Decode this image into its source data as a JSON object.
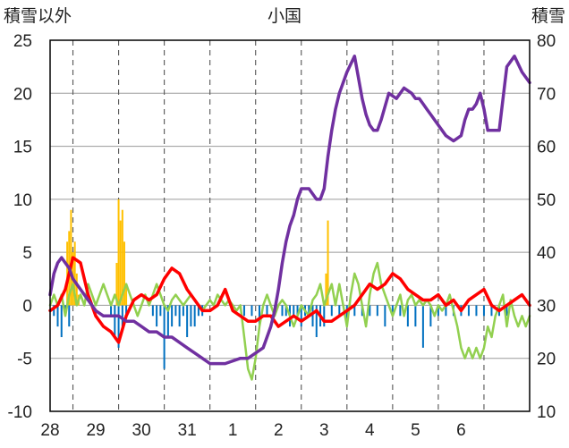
{
  "chart_data": {
    "type": "line",
    "title": "小国",
    "ylabel_left": "積雪以外",
    "ylabel_right": "積雪",
    "ylim_left": [
      -10,
      25
    ],
    "ylim_right": [
      10,
      80
    ],
    "yticks_left": [
      "25",
      "20",
      "15",
      "10",
      "5",
      "0",
      "-5",
      "-10"
    ],
    "yticks_right": [
      "80",
      "70",
      "60",
      "50",
      "40",
      "30",
      "20",
      "10"
    ],
    "x_range_hours": [
      -12,
      240
    ],
    "xtick_labels": [
      "28",
      "29",
      "30",
      "31",
      "1",
      "2",
      "3",
      "4",
      "5",
      "6"
    ],
    "grid": true,
    "legend": "none",
    "colors": {
      "temperature": "#ff0000",
      "snow_depth": "#7030a0",
      "snowfall": "#ffc000",
      "precipitation": "#0070c0",
      "wind": "#92d050"
    },
    "bars_snowfall": {
      "axis": "left",
      "x": [
        -3,
        -2,
        -1,
        0,
        1,
        2,
        3,
        23,
        24,
        25,
        26,
        27,
        28,
        133,
        134
      ],
      "values": [
        6,
        7,
        9,
        5,
        6,
        3,
        1,
        4,
        10,
        8,
        9,
        6,
        2,
        3,
        8
      ]
    },
    "bars_precipitation": {
      "axis": "left",
      "x": [
        -10,
        -8,
        -6,
        -4,
        -2,
        20,
        22,
        24,
        26,
        28,
        42,
        44,
        46,
        48,
        50,
        52,
        54,
        56,
        58,
        60,
        62,
        64,
        66,
        68,
        90,
        94,
        98,
        102,
        106,
        110,
        112,
        114,
        116,
        118,
        120,
        122,
        124,
        126,
        128,
        130,
        132,
        136,
        140,
        144,
        148,
        152,
        156,
        160,
        164,
        168,
        172,
        176,
        180,
        184,
        188,
        192,
        196,
        200,
        204,
        208,
        212,
        216,
        220,
        224,
        228
      ],
      "values": [
        -1,
        -2,
        -3,
        -1,
        -2,
        -1,
        -3,
        -4,
        -2,
        -1,
        -1,
        -2,
        -1,
        -6,
        -3,
        -2,
        -1,
        -2,
        -1,
        -3,
        -2,
        -2,
        -1,
        -1,
        -1,
        -1,
        -2,
        -1,
        -1,
        -1,
        -1,
        -2,
        -1,
        -1,
        -2,
        -1,
        -1,
        -2,
        -3,
        -2,
        -2,
        -1,
        -1,
        -2,
        -1,
        -1,
        -1,
        -1,
        -2,
        -1,
        -1,
        -2,
        -2,
        -4,
        -2,
        -1,
        -1,
        -1,
        -1,
        -1,
        -1,
        -1,
        -1,
        -1,
        -1
      ]
    },
    "series": [
      {
        "key": "snow_depth",
        "axis": "right",
        "x": [
          -12,
          -10,
          -8,
          -6,
          -4,
          -2,
          0,
          4,
          8,
          12,
          16,
          20,
          24,
          28,
          32,
          36,
          40,
          44,
          48,
          52,
          56,
          60,
          64,
          68,
          72,
          80,
          88,
          92,
          96,
          100,
          104,
          106,
          108,
          110,
          112,
          114,
          116,
          118,
          120,
          124,
          126,
          128,
          130,
          132,
          134,
          136,
          138,
          140,
          144,
          148,
          152,
          154,
          156,
          158,
          160,
          162,
          166,
          170,
          174,
          178,
          180,
          182,
          184,
          186,
          188,
          192,
          196,
          200,
          204,
          206,
          208,
          210,
          212,
          214,
          216,
          218,
          220,
          224,
          228,
          232,
          236,
          240
        ],
        "values": [
          32,
          36,
          38,
          39,
          38,
          37,
          35,
          33,
          31,
          29,
          28,
          28,
          28,
          27,
          27,
          26,
          25,
          25,
          24,
          24,
          23,
          22,
          21,
          20,
          19,
          19,
          20,
          20,
          21,
          22,
          26,
          29,
          33,
          38,
          42,
          45,
          47,
          50,
          52,
          52,
          51,
          50,
          50,
          52,
          58,
          63,
          67,
          70,
          74,
          77,
          69,
          66,
          64,
          63,
          63,
          65,
          70,
          69,
          71,
          70,
          69,
          69,
          68,
          67,
          66,
          64,
          62,
          61,
          62,
          65,
          67,
          67,
          68,
          70,
          67,
          63,
          63,
          63,
          75,
          77,
          74,
          72
        ]
      },
      {
        "key": "temperature",
        "axis": "left",
        "x": [
          -12,
          -8,
          -4,
          0,
          4,
          8,
          12,
          16,
          20,
          24,
          28,
          32,
          36,
          40,
          44,
          48,
          52,
          56,
          60,
          64,
          68,
          72,
          76,
          80,
          84,
          88,
          92,
          96,
          100,
          104,
          108,
          112,
          116,
          120,
          124,
          128,
          132,
          136,
          140,
          144,
          148,
          152,
          156,
          160,
          164,
          168,
          172,
          176,
          180,
          184,
          188,
          192,
          196,
          200,
          204,
          208,
          212,
          216,
          220,
          224,
          228,
          232,
          236,
          240
        ],
        "values": [
          -0.5,
          0,
          1.5,
          4.5,
          4,
          1,
          -1,
          -2,
          -2.5,
          -3.5,
          -1,
          0.5,
          1,
          0.5,
          1,
          2.5,
          3.5,
          3,
          1.5,
          0.5,
          -0.5,
          -0.5,
          0,
          1.5,
          -0.5,
          -1,
          -1.5,
          -1.5,
          -1,
          -1,
          -2,
          -1.5,
          -1,
          -1.5,
          -1,
          -0.5,
          -1.5,
          -1.5,
          -1,
          -0.5,
          0,
          1,
          2,
          1.5,
          2,
          3,
          2.5,
          1.5,
          1,
          0.5,
          0.5,
          1,
          0,
          0.5,
          -0.5,
          0.5,
          1,
          1.5,
          0,
          -0.5,
          0,
          0.5,
          1,
          0
        ]
      },
      {
        "key": "wind",
        "axis": "left",
        "x": [
          -12,
          -10,
          -8,
          -6,
          -4,
          -2,
          0,
          2,
          4,
          6,
          8,
          10,
          12,
          14,
          16,
          18,
          20,
          22,
          24,
          26,
          28,
          30,
          32,
          34,
          36,
          38,
          40,
          42,
          44,
          46,
          48,
          50,
          52,
          54,
          56,
          58,
          60,
          62,
          64,
          66,
          68,
          70,
          72,
          74,
          76,
          78,
          80,
          82,
          84,
          86,
          88,
          90,
          92,
          94,
          96,
          98,
          100,
          102,
          104,
          106,
          108,
          110,
          112,
          114,
          116,
          118,
          120,
          122,
          124,
          126,
          128,
          130,
          132,
          134,
          136,
          138,
          140,
          142,
          144,
          146,
          148,
          150,
          152,
          154,
          156,
          158,
          160,
          162,
          164,
          166,
          168,
          170,
          172,
          174,
          176,
          178,
          180,
          182,
          184,
          186,
          188,
          190,
          192,
          194,
          196,
          198,
          200,
          202,
          204,
          206,
          208,
          210,
          212,
          214,
          216,
          218,
          220,
          222,
          224,
          226,
          228,
          230,
          232,
          234,
          236,
          238,
          240
        ],
        "values": [
          0,
          1,
          0,
          1,
          -1,
          1,
          2,
          0,
          1,
          0,
          2,
          1,
          0,
          1,
          2,
          1,
          0,
          1,
          0,
          1,
          2,
          1,
          0,
          -1,
          0,
          1,
          0,
          1,
          2,
          1,
          0,
          -0.5,
          0.5,
          1,
          0.5,
          0,
          0.5,
          1,
          0.5,
          0,
          -0.5,
          0,
          0.5,
          0,
          1,
          0.5,
          0,
          0.5,
          0,
          -0.5,
          0,
          -3,
          -6,
          -7,
          -5,
          -2,
          0,
          1,
          0,
          -1,
          0,
          0.5,
          0,
          -1,
          -2,
          -1,
          0,
          -0.5,
          -1,
          0.5,
          1,
          2,
          0,
          1,
          2,
          0,
          2,
          0,
          -2,
          1,
          3,
          2,
          0,
          -2,
          1,
          3,
          4,
          2,
          1,
          0,
          -1,
          0,
          1,
          -1,
          0.5,
          1,
          0,
          0.5,
          0,
          0.5,
          0,
          -1,
          0,
          -0.5,
          0,
          1,
          -0.5,
          -2,
          -4,
          -5,
          -4,
          -5,
          -4,
          -5,
          -4,
          -2,
          -3,
          -1,
          0,
          1,
          -2,
          0.5,
          -1,
          -2,
          -1,
          -2,
          -1
        ]
      }
    ]
  }
}
